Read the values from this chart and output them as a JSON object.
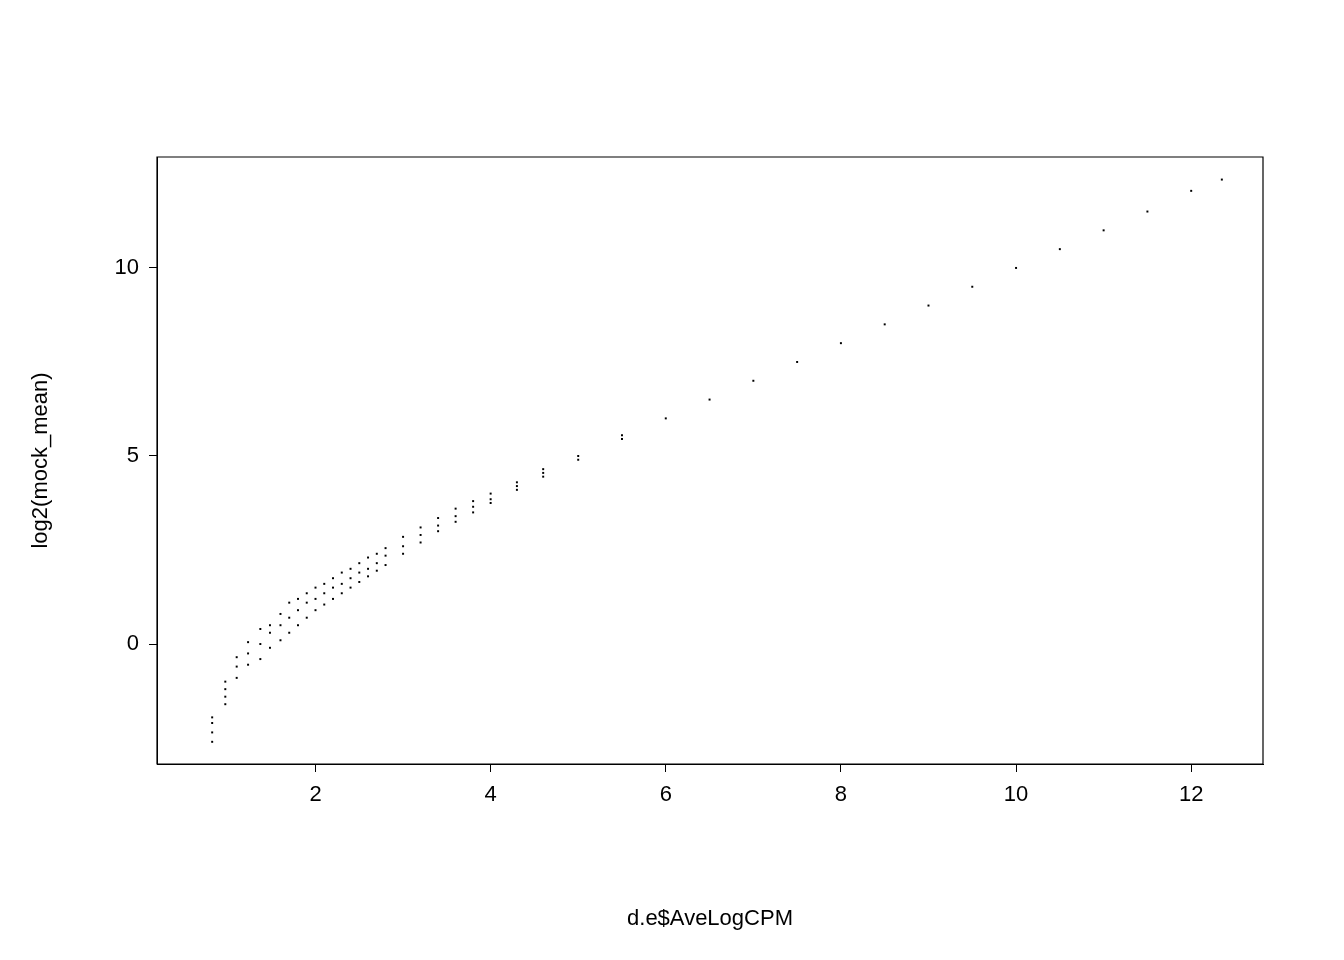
{
  "chart_data": {
    "type": "scatter",
    "xlabel": "d.e$AveLogCPM",
    "ylabel": "log2(mock_mean)",
    "color": "#000000",
    "marker": "square",
    "xlim": [
      0.19,
      12.82
    ],
    "ylim": [
      -3.19,
      12.95
    ],
    "xticks": [
      2,
      4,
      6,
      8,
      10,
      12
    ],
    "yticks": [
      0,
      5,
      10
    ],
    "x": [
      0.82,
      0.82,
      0.82,
      0.82,
      0.97,
      0.97,
      0.97,
      0.97,
      1.1,
      1.1,
      1.1,
      1.23,
      1.23,
      1.23,
      1.37,
      1.37,
      1.37,
      1.48,
      1.48,
      1.48,
      1.6,
      1.6,
      1.6,
      1.7,
      1.7,
      1.7,
      1.8,
      1.8,
      1.8,
      1.9,
      1.9,
      1.9,
      2.0,
      2.0,
      2.0,
      2.1,
      2.1,
      2.1,
      2.2,
      2.2,
      2.2,
      2.3,
      2.3,
      2.3,
      2.4,
      2.4,
      2.4,
      2.5,
      2.5,
      2.5,
      2.6,
      2.6,
      2.6,
      2.7,
      2.7,
      2.7,
      2.8,
      2.8,
      2.8,
      3.0,
      3.0,
      3.0,
      3.2,
      3.2,
      3.2,
      3.4,
      3.4,
      3.4,
      3.6,
      3.6,
      3.6,
      3.8,
      3.8,
      3.8,
      4.0,
      4.0,
      4.0,
      4.3,
      4.3,
      4.3,
      4.6,
      4.6,
      4.6,
      5.0,
      5.0,
      5.5,
      5.5,
      6.0,
      6.5,
      7.0,
      7.5,
      8.0,
      8.5,
      9.0,
      9.5,
      10.0,
      10.5,
      11.0,
      11.5,
      12.0,
      12.35
    ],
    "values": [
      -2.6,
      -2.35,
      -2.1,
      -1.95,
      -1.6,
      -1.4,
      -1.2,
      -1.0,
      -0.9,
      -0.6,
      -0.35,
      -0.55,
      -0.25,
      0.05,
      -0.4,
      0.0,
      0.4,
      -0.1,
      0.3,
      0.5,
      0.1,
      0.5,
      0.8,
      0.3,
      0.7,
      1.1,
      0.5,
      0.9,
      1.2,
      0.7,
      1.1,
      1.35,
      0.9,
      1.2,
      1.5,
      1.05,
      1.35,
      1.6,
      1.2,
      1.5,
      1.75,
      1.35,
      1.6,
      1.9,
      1.5,
      1.75,
      2.0,
      1.65,
      1.9,
      2.15,
      1.8,
      2.0,
      2.3,
      1.95,
      2.15,
      2.4,
      2.1,
      2.35,
      2.55,
      2.4,
      2.6,
      2.85,
      2.7,
      2.9,
      3.1,
      3.0,
      3.15,
      3.35,
      3.25,
      3.4,
      3.6,
      3.5,
      3.65,
      3.8,
      3.75,
      3.85,
      4.0,
      4.1,
      4.2,
      4.3,
      4.45,
      4.55,
      4.65,
      4.9,
      5.0,
      5.45,
      5.55,
      6.0,
      6.5,
      7.0,
      7.5,
      8.0,
      8.5,
      9.0,
      9.5,
      10.0,
      10.5,
      11.0,
      11.5,
      12.05,
      12.35
    ]
  }
}
